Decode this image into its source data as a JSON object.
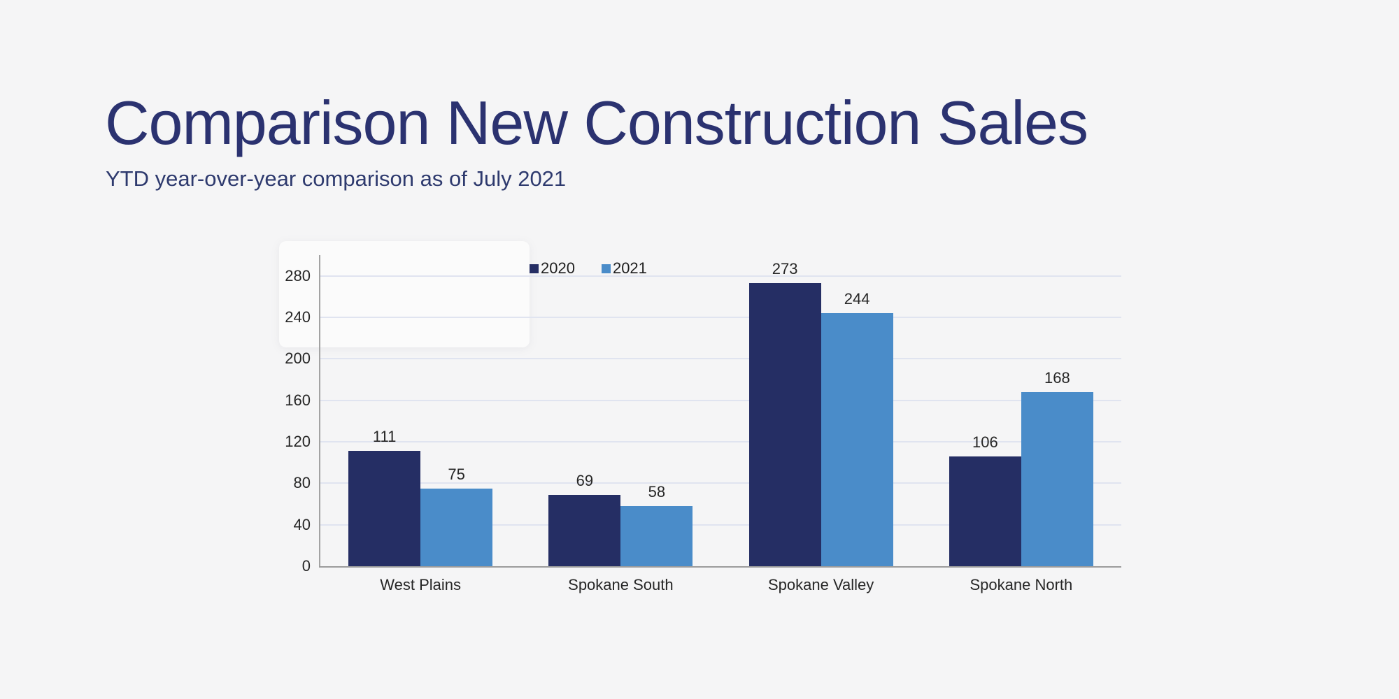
{
  "page": {
    "title": "Comparison New Construction Sales",
    "subtitle": "YTD year-over-year comparison as of July 2021"
  },
  "chart_data": {
    "type": "bar",
    "title": "",
    "xlabel": "",
    "ylabel": "",
    "categories": [
      "West Plains",
      "Spokane South",
      "Spokane Valley",
      "Spokane North"
    ],
    "series": [
      {
        "name": "2020",
        "color": "#252e64",
        "values": [
          111,
          69,
          273,
          106
        ]
      },
      {
        "name": "2021",
        "color": "#4a8cc9",
        "values": [
          75,
          58,
          244,
          168
        ]
      }
    ],
    "ylim": [
      0,
      300
    ],
    "yticks": [
      0,
      40,
      80,
      120,
      160,
      200,
      240,
      280
    ],
    "grid": true,
    "legend_position": "top",
    "value_labels": true
  },
  "theme": {
    "background": "#f5f5f6",
    "heading_color": "#2b3270",
    "bar_2020_color": "#252e64",
    "bar_2021_color": "#4a8cc9",
    "gridline_color": "#e0e4f0",
    "axis_color": "#9c9c9c",
    "label_color": "#262626"
  }
}
